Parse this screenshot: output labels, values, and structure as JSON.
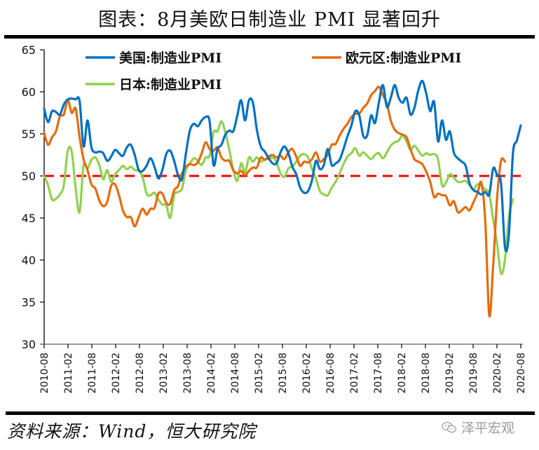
{
  "title": "图表：8月美欧日制造业 PMI 显著回升",
  "source": "资料来源：Wind，恒大研究院",
  "watermark": "泽平宏观",
  "watermark_icon": "wechat-icon",
  "chart_data": {
    "type": "line",
    "title": "图表：8月美欧日制造业 PMI 显著回升",
    "xlabel": "",
    "ylabel": "",
    "ylim": [
      30,
      65
    ],
    "yticks": [
      "30",
      "35",
      "40",
      "45",
      "50",
      "55",
      "60",
      "65"
    ],
    "xticks": [
      "2010-08",
      "2011-02",
      "2011-08",
      "2012-02",
      "2012-08",
      "2013-02",
      "2013-08",
      "2014-02",
      "2014-08",
      "2015-02",
      "2015-08",
      "2016-02",
      "2016-08",
      "2017-02",
      "2017-08",
      "2018-02",
      "2018-08",
      "2019-02",
      "2019-08",
      "2020-02",
      "2020-08"
    ],
    "x_start": "2010-08",
    "x_end": "2020-08",
    "frequency": "monthly",
    "grid": false,
    "legend_position": "top",
    "reference_line": {
      "value": 50,
      "color": "#ff0000",
      "style": "dashed"
    },
    "series": [
      {
        "name": "美国:制造业PMI",
        "color": "#0070c0",
        "values": [
          58.0,
          56.4,
          57.7,
          57.6,
          57.3,
          58.5,
          59.1,
          59.2,
          59.1,
          58.9,
          53.5,
          56.6,
          53.4,
          52.8,
          52.9,
          52.7,
          51.8,
          52.3,
          53.1,
          52.7,
          52.4,
          53.4,
          53.7,
          52.5,
          50.7,
          50.6,
          51.2,
          52.1,
          51.1,
          49.7,
          50.7,
          52.6,
          53.0,
          51.8,
          50.1,
          49.6,
          52.7,
          55.4,
          56.2,
          55.9,
          56.6,
          57.0,
          56.5,
          51.3,
          53.2,
          53.7,
          54.9,
          55.4,
          55.3,
          57.1,
          59.0,
          56.6,
          59.0,
          58.7,
          55.5,
          53.5,
          52.9,
          52.1,
          51.5,
          51.5,
          52.8,
          53.5,
          52.7,
          51.1,
          50.2,
          48.6,
          48.0,
          48.2,
          49.5,
          51.8,
          50.8,
          51.3,
          53.2,
          51.3,
          51.5,
          51.9,
          53.2,
          54.7,
          56.0,
          57.7,
          57.2,
          54.8,
          54.8,
          57.2,
          56.3,
          58.8,
          60.8,
          58.2,
          59.3,
          60.8,
          59.3,
          58.7,
          59.3,
          57.3,
          58.1,
          60.2,
          61.3,
          59.8,
          57.7,
          58.8,
          54.1,
          56.6,
          54.3,
          55.3,
          52.8,
          52.1,
          51.7,
          51.2,
          49.1,
          48.3,
          48.1,
          47.8,
          48.1,
          47.8,
          50.9,
          50.1,
          49.1,
          41.5,
          43.1,
          52.6,
          54.2,
          56.0
        ]
      },
      {
        "name": "欧元区:制造业PMI",
        "color": "#e46c0a",
        "values": [
          55.1,
          53.7,
          54.6,
          55.3,
          57.1,
          57.3,
          59.0,
          57.5,
          58.0,
          54.6,
          52.0,
          50.7,
          49.0,
          48.5,
          47.1,
          46.4,
          46.9,
          48.8,
          49.0,
          47.7,
          45.9,
          45.1,
          45.1,
          44.0,
          45.1,
          46.1,
          45.4,
          46.1,
          46.2,
          47.9,
          47.9,
          46.8,
          46.7,
          48.3,
          48.8,
          50.3,
          51.1,
          51.4,
          51.3,
          51.6,
          52.7,
          54.0,
          53.2,
          53.0,
          53.4,
          52.2,
          51.8,
          51.8,
          50.7,
          50.3,
          50.6,
          50.1,
          50.6,
          51.0,
          51.0,
          52.2,
          51.9,
          52.3,
          52.5,
          52.2,
          52.4,
          52.0,
          52.8,
          53.2,
          52.3,
          51.2,
          51.7,
          51.6,
          52.0,
          52.8,
          51.7,
          52.0,
          52.5,
          53.7,
          53.8,
          54.8,
          55.6,
          56.2,
          57.0,
          57.4,
          57.4,
          58.1,
          58.6,
          59.6,
          60.1,
          60.6,
          59.6,
          58.6,
          56.6,
          55.5,
          55.1,
          54.9,
          54.6,
          53.2,
          52.0,
          51.7,
          51.4,
          50.5,
          49.3,
          47.5,
          47.9,
          47.7,
          47.6,
          46.5,
          47.0,
          45.7,
          45.9,
          46.3,
          45.9,
          46.9,
          47.9,
          49.2,
          44.5,
          33.4,
          39.4,
          47.4,
          51.8,
          51.7
        ]
      },
      {
        "name": "日本:制造业PMI",
        "color": "#92d050",
        "values": [
          50.0,
          48.9,
          47.2,
          47.3,
          47.8,
          48.9,
          53.0,
          52.9,
          48.5,
          45.7,
          51.3,
          50.9,
          51.9,
          52.2,
          51.3,
          49.6,
          50.7,
          49.3,
          50.2,
          50.7,
          51.2,
          50.8,
          51.1,
          50.7,
          50.6,
          49.9,
          47.9,
          47.7,
          48.0,
          47.2,
          46.6,
          46.5,
          45.0,
          47.7,
          48.1,
          48.5,
          50.7,
          51.5,
          52.1,
          51.8,
          51.3,
          52.2,
          52.4,
          55.2,
          55.3,
          56.5,
          55.2,
          53.1,
          50.8,
          49.4,
          51.5,
          50.4,
          52.2,
          51.7,
          52.2,
          51.7,
          52.0,
          52.0,
          52.2,
          51.6,
          50.3,
          49.9,
          50.9,
          51.1,
          51.7,
          52.4,
          52.6,
          52.2,
          50.8,
          49.7,
          48.2,
          47.8,
          47.7,
          48.6,
          49.3,
          50.3,
          51.4,
          52.3,
          52.7,
          53.3,
          52.4,
          52.8,
          52.4,
          52.0,
          52.5,
          52.7,
          52.1,
          52.8,
          53.6,
          54.0,
          54.2,
          54.8,
          54.1,
          53.1,
          53.6,
          53.0,
          52.4,
          52.7,
          52.5,
          52.6,
          52.0,
          48.9,
          49.2,
          50.2,
          49.8,
          49.3,
          49.3,
          49.4,
          48.9,
          48.4,
          49.0,
          48.8,
          48.4,
          47.8,
          44.8,
          41.9,
          38.4,
          40.1,
          45.2,
          47.2
        ]
      }
    ]
  }
}
